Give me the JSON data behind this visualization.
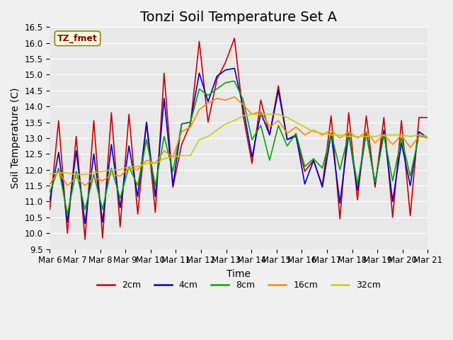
{
  "title": "Tonzi Soil Temperature Set A",
  "xlabel": "Time",
  "ylabel": "Soil Temperature (C)",
  "ylim": [
    9.5,
    16.5
  ],
  "xtick_labels": [
    "Mar 6",
    "Mar 7",
    "Mar 8",
    "Mar 9",
    "Mar 10",
    "Mar 11",
    "Mar 12",
    "Mar 13",
    "Mar 14",
    "Mar 15",
    "Mar 16",
    "Mar 17",
    "Mar 18",
    "Mar 19",
    "Mar 20",
    "Mar 21"
  ],
  "legend_label": "TZ_fmet",
  "series_labels": [
    "2cm",
    "4cm",
    "8cm",
    "16cm",
    "32cm"
  ],
  "series_colors": [
    "#cc0000",
    "#0000cc",
    "#00aa00",
    "#ff8800",
    "#cccc00"
  ],
  "background_color": "#e8e8e8",
  "grid_color": "#ffffff",
  "title_fontsize": 14,
  "axis_fontsize": 10,
  "tick_fontsize": 8.5,
  "data_2cm": [
    10.75,
    13.55,
    10.0,
    13.05,
    9.8,
    13.55,
    9.85,
    13.8,
    10.2,
    13.75,
    10.6,
    13.5,
    10.65,
    15.05,
    11.45,
    12.8,
    13.45,
    16.05,
    13.5,
    14.85,
    15.4,
    16.15,
    13.7,
    12.2,
    14.2,
    13.1,
    14.65,
    12.95,
    13.05,
    11.95,
    12.3,
    11.5,
    13.7,
    10.45,
    13.8,
    11.05,
    13.7,
    11.45,
    13.65,
    10.5,
    13.55,
    10.55,
    13.65,
    13.65
  ],
  "data_4cm": [
    11.05,
    12.55,
    10.35,
    12.6,
    10.3,
    12.5,
    10.35,
    12.8,
    10.8,
    12.75,
    11.15,
    13.5,
    11.15,
    14.25,
    11.5,
    13.45,
    13.5,
    15.05,
    14.15,
    14.95,
    15.15,
    15.2,
    13.95,
    12.4,
    13.8,
    13.1,
    14.5,
    12.95,
    13.1,
    11.55,
    12.3,
    11.45,
    13.15,
    10.95,
    13.15,
    11.35,
    13.2,
    11.55,
    13.25,
    11.0,
    12.85,
    11.5,
    13.2,
    13.0
  ],
  "data_8cm": [
    11.3,
    12.05,
    10.6,
    11.95,
    10.75,
    11.85,
    10.75,
    12.05,
    11.1,
    12.1,
    11.5,
    12.95,
    11.5,
    13.05,
    11.95,
    13.45,
    13.5,
    14.55,
    14.35,
    14.55,
    14.75,
    14.8,
    14.2,
    12.95,
    13.4,
    12.3,
    13.4,
    12.75,
    13.15,
    12.1,
    12.35,
    12.05,
    13.15,
    12.0,
    13.15,
    11.55,
    13.15,
    11.6,
    13.1,
    11.65,
    13.0,
    11.8,
    13.1,
    13.0
  ],
  "data_16cm": [
    11.55,
    11.95,
    11.5,
    11.75,
    11.5,
    11.75,
    11.65,
    11.85,
    11.8,
    12.05,
    12.0,
    12.3,
    12.2,
    12.6,
    12.4,
    13.2,
    13.35,
    13.9,
    14.1,
    14.25,
    14.2,
    14.3,
    14.05,
    13.75,
    13.85,
    13.35,
    13.55,
    13.15,
    13.35,
    13.1,
    13.25,
    13.1,
    13.25,
    13.0,
    13.2,
    13.0,
    13.2,
    12.85,
    13.1,
    12.8,
    13.1,
    12.7,
    13.05,
    13.0
  ],
  "data_32cm": [
    11.85,
    11.9,
    11.9,
    11.85,
    11.85,
    11.9,
    11.95,
    12.0,
    12.0,
    12.1,
    12.1,
    12.2,
    12.2,
    12.35,
    12.4,
    12.45,
    12.45,
    12.95,
    13.05,
    13.25,
    13.45,
    13.55,
    13.7,
    13.75,
    13.75,
    13.75,
    13.75,
    13.65,
    13.5,
    13.35,
    13.2,
    13.15,
    13.1,
    13.1,
    13.05,
    13.05,
    13.05,
    13.05,
    13.1,
    13.1,
    13.1,
    13.05,
    13.1,
    13.05
  ]
}
